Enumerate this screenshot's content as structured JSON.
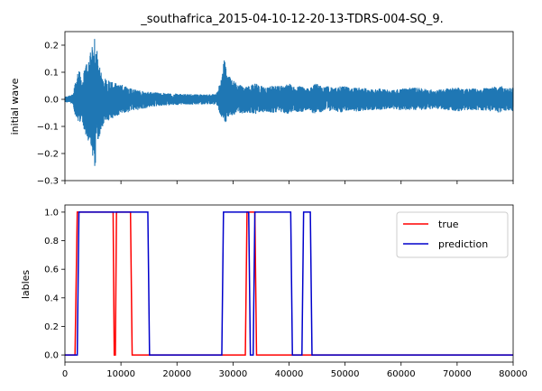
{
  "chart_data": [
    {
      "type": "line",
      "title": "_southafrica_2015-04-10-12-20-13-TDRS-004-SQ_9.",
      "ylabel": "initial wave",
      "xlabel": "",
      "xlim": [
        0,
        80000
      ],
      "ylim": [
        -0.3,
        0.25
      ],
      "x_tick_labels_visible": false,
      "y_ticks": [
        -0.3,
        -0.2,
        -0.1,
        0.0,
        0.1,
        0.2
      ],
      "y_tick_labels": [
        "−0.3",
        "−0.2",
        "−0.1",
        "0.0",
        "0.1",
        "0.2"
      ],
      "grid": false,
      "series": [
        {
          "color": "#1f77b4",
          "envelope": {
            "x": [
              0,
              1000,
              1500,
              1700,
              2500,
              3000,
              3500,
              4200,
              4800,
              5300,
              5600,
              6000,
              6500,
              7000,
              8000,
              9000,
              10000,
              11000,
              12000,
              13000,
              14000,
              15000,
              17000,
              19000,
              21000,
              23000,
              25000,
              27000,
              28000,
              28400,
              28700,
              29000,
              29500,
              30000,
              31000,
              32000,
              33000,
              34000,
              35000,
              36000,
              37000,
              38000,
              39000,
              40000,
              41000,
              42000,
              43000,
              44000,
              45000,
              46000,
              47000,
              48000,
              49000,
              50000,
              51000,
              52000,
              54000,
              56000,
              58000,
              60000,
              62000,
              64000,
              66000,
              68000,
              70000,
              72000,
              74000,
              76000,
              78000,
              79000,
              80000
            ],
            "upper": [
              0.01,
              0.015,
              0.02,
              0.05,
              0.12,
              0.07,
              0.11,
              0.16,
              0.19,
              0.225,
              0.2,
              0.15,
              0.1,
              0.08,
              0.07,
              0.06,
              0.055,
              0.05,
              0.04,
              0.035,
              0.03,
              0.028,
              0.025,
              0.022,
              0.02,
              0.02,
              0.018,
              0.02,
              0.08,
              0.16,
              0.13,
              0.1,
              0.08,
              0.07,
              0.06,
              0.045,
              0.05,
              0.06,
              0.05,
              0.045,
              0.05,
              0.055,
              0.05,
              0.06,
              0.045,
              0.05,
              0.04,
              0.05,
              0.06,
              0.045,
              0.05,
              0.04,
              0.05,
              0.05,
              0.04,
              0.045,
              0.04,
              0.04,
              0.035,
              0.04,
              0.045,
              0.04,
              0.035,
              0.04,
              0.045,
              0.04,
              0.04,
              0.045,
              0.05,
              0.04,
              0.045
            ],
            "lower": [
              -0.01,
              -0.015,
              -0.02,
              -0.05,
              -0.09,
              -0.07,
              -0.12,
              -0.16,
              -0.2,
              -0.275,
              -0.22,
              -0.15,
              -0.11,
              -0.09,
              -0.075,
              -0.065,
              -0.055,
              -0.05,
              -0.045,
              -0.04,
              -0.035,
              -0.03,
              -0.025,
              -0.022,
              -0.02,
              -0.02,
              -0.018,
              -0.02,
              -0.07,
              -0.08,
              -0.09,
              -0.08,
              -0.065,
              -0.06,
              -0.055,
              -0.05,
              -0.05,
              -0.055,
              -0.05,
              -0.045,
              -0.05,
              -0.05,
              -0.05,
              -0.055,
              -0.045,
              -0.05,
              -0.04,
              -0.05,
              -0.055,
              -0.045,
              -0.045,
              -0.04,
              -0.05,
              -0.045,
              -0.04,
              -0.045,
              -0.04,
              -0.04,
              -0.035,
              -0.04,
              -0.04,
              -0.04,
              -0.035,
              -0.04,
              -0.045,
              -0.04,
              -0.04,
              -0.045,
              -0.05,
              -0.04,
              -0.045
            ]
          }
        }
      ]
    },
    {
      "type": "line",
      "title": "",
      "ylabel": "lables",
      "xlabel": "",
      "xlim": [
        0,
        80000
      ],
      "ylim": [
        -0.05,
        1.05
      ],
      "x_ticks": [
        0,
        10000,
        20000,
        30000,
        40000,
        50000,
        60000,
        70000,
        80000
      ],
      "x_tick_labels": [
        "0",
        "10000",
        "20000",
        "30000",
        "40000",
        "50000",
        "60000",
        "70000",
        "80000"
      ],
      "y_ticks": [
        0.0,
        0.2,
        0.4,
        0.6,
        0.8,
        1.0
      ],
      "y_tick_labels": [
        "0.0",
        "0.2",
        "0.4",
        "0.6",
        "0.8",
        "1.0"
      ],
      "grid": false,
      "legend_position": "top-right",
      "series": [
        {
          "name": "true",
          "color": "#ff0000",
          "x": [
            0,
            1800,
            2200,
            8600,
            8800,
            9000,
            9200,
            11700,
            12000,
            32200,
            32500,
            33900,
            34200,
            37500,
            37800,
            80000
          ],
          "y": [
            0,
            0,
            1,
            1,
            0,
            0,
            1,
            1,
            0,
            0,
            1,
            1,
            0,
            0,
            0,
            0
          ]
        },
        {
          "name": "prediction",
          "color": "#0000cc",
          "x": [
            0,
            2200,
            2500,
            14800,
            15100,
            28000,
            28300,
            32800,
            33100,
            33600,
            33900,
            40300,
            40600,
            42300,
            42600,
            43800,
            44100,
            80000
          ],
          "y": [
            0,
            0,
            1,
            1,
            0,
            0,
            1,
            1,
            0,
            0,
            1,
            1,
            0,
            0,
            1,
            1,
            0,
            0
          ]
        }
      ]
    }
  ]
}
